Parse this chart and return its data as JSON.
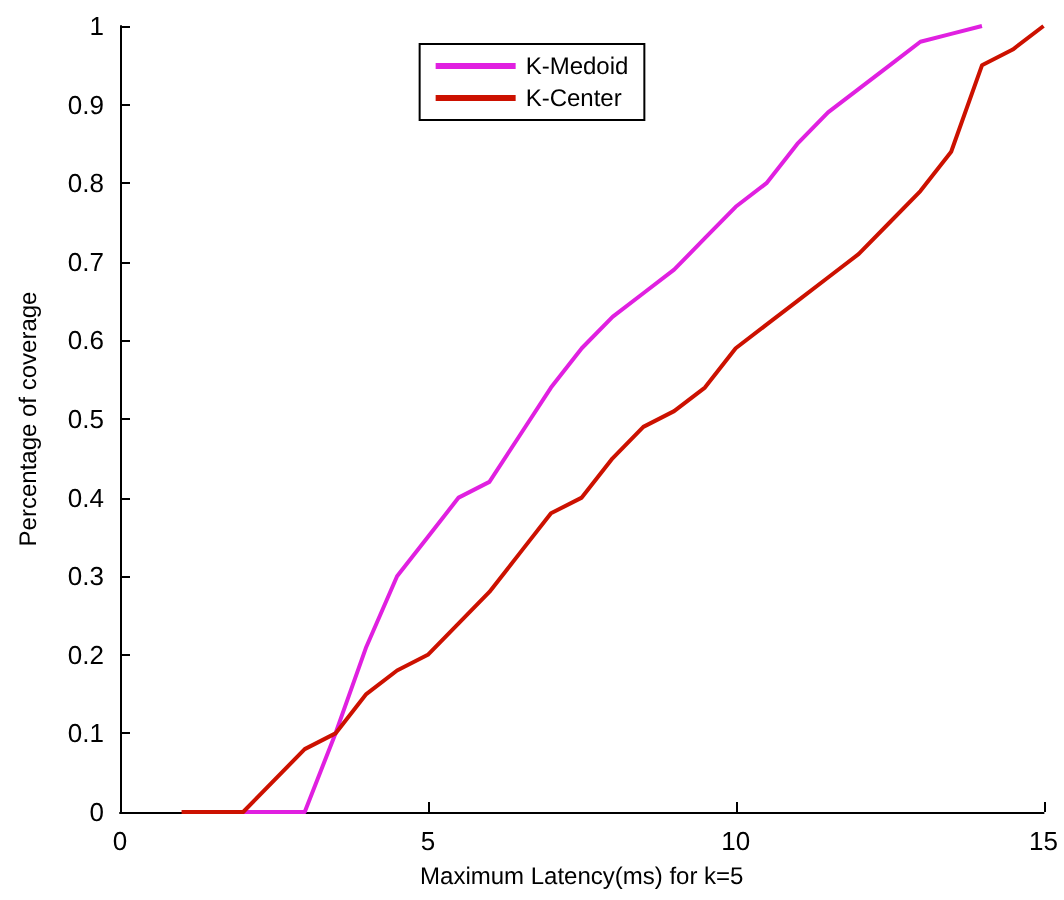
{
  "chart_data": {
    "type": "line",
    "xlabel": "Maximum Latency(ms) for k=5",
    "ylabel": "Percentage of coverage",
    "xlim": [
      0,
      15
    ],
    "xticks": [
      0,
      5,
      10,
      15
    ],
    "ylim": [
      0,
      1
    ],
    "yticks": [
      0,
      0.1,
      0.2,
      0.3,
      0.4,
      0.5,
      0.6,
      0.7,
      0.8,
      0.9,
      1
    ],
    "grid": false,
    "legend": "top",
    "marker": "none",
    "line_style": "solid",
    "series": [
      {
        "name": "K-Medoid",
        "color": "#e020e0",
        "x": [
          2,
          3,
          3.5,
          4,
          4.5,
          5,
          5.5,
          6,
          6.5,
          7,
          7.5,
          8,
          8.5,
          9,
          9.5,
          10,
          10.5,
          11,
          11.5,
          12,
          12.5,
          13,
          13.5,
          14
        ],
        "values": [
          0,
          0,
          0.1,
          0.21,
          0.3,
          0.35,
          0.4,
          0.42,
          0.48,
          0.54,
          0.59,
          0.63,
          0.66,
          0.69,
          0.73,
          0.77,
          0.8,
          0.85,
          0.89,
          0.92,
          0.95,
          0.98,
          0.99,
          1
        ]
      },
      {
        "name": "K-Center",
        "color": "#cc1100",
        "x": [
          1,
          2,
          3,
          3.5,
          4,
          4.5,
          5,
          5.5,
          6,
          6.5,
          7,
          7.5,
          8,
          8.5,
          9,
          9.5,
          10,
          10.5,
          11,
          11.5,
          12,
          12.5,
          13,
          13.5,
          14,
          14.5,
          15
        ],
        "values": [
          0,
          0,
          0.08,
          0.1,
          0.15,
          0.18,
          0.2,
          0.24,
          0.28,
          0.33,
          0.38,
          0.4,
          0.45,
          0.49,
          0.51,
          0.54,
          0.59,
          0.62,
          0.65,
          0.68,
          0.71,
          0.75,
          0.79,
          0.84,
          0.95,
          0.97,
          1
        ]
      }
    ]
  }
}
